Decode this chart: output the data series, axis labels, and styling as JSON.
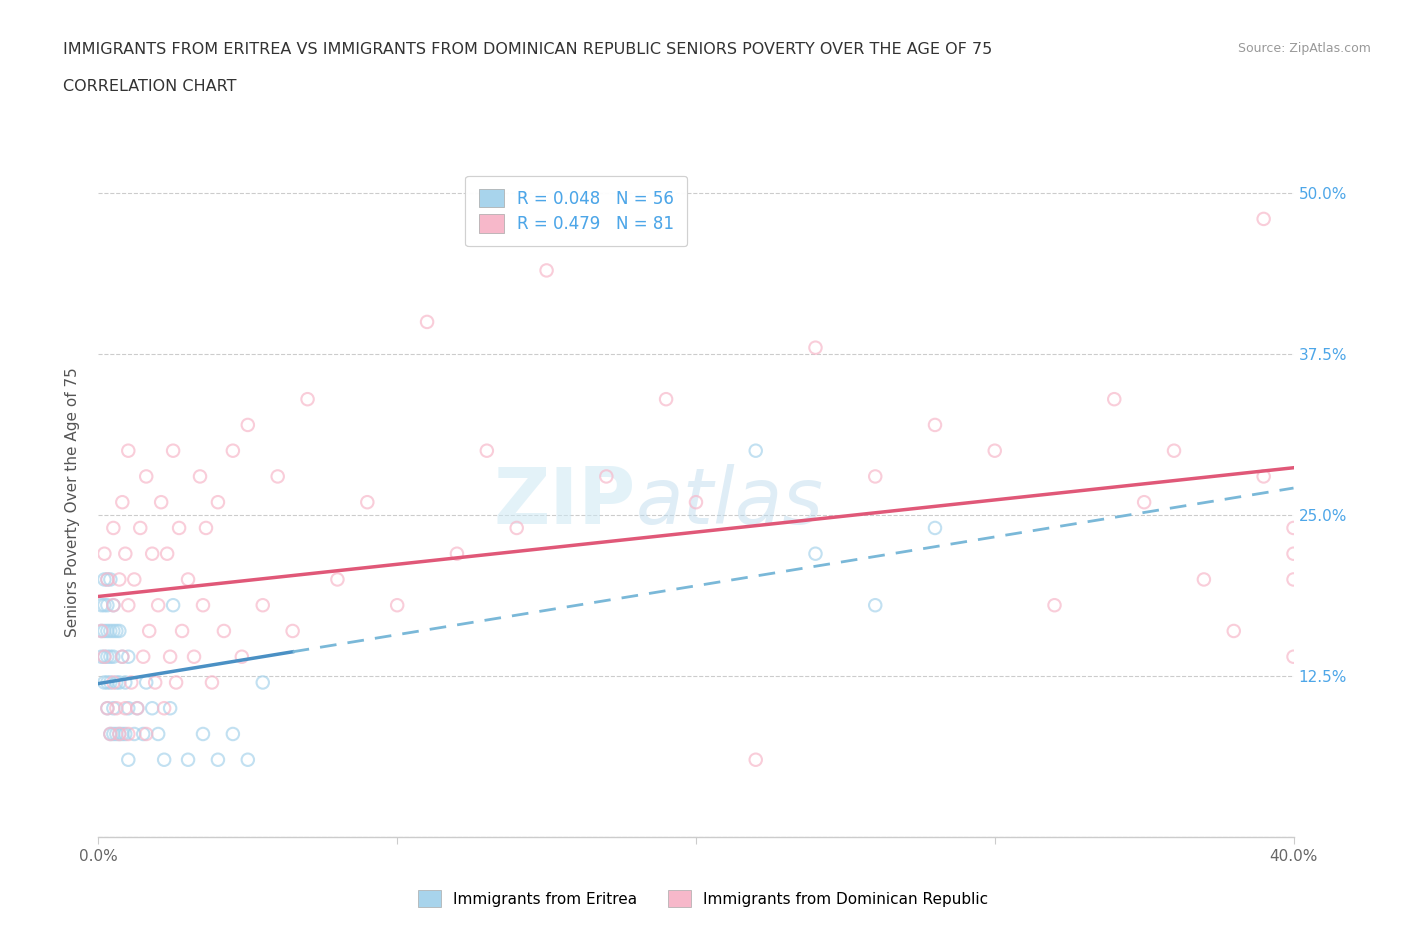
{
  "title_line1": "IMMIGRANTS FROM ERITREA VS IMMIGRANTS FROM DOMINICAN REPUBLIC SENIORS POVERTY OVER THE AGE OF 75",
  "title_line2": "CORRELATION CHART",
  "source": "Source: ZipAtlas.com",
  "watermark_zip": "ZIP",
  "watermark_atlas": "atlas",
  "xlabel": "",
  "ylabel": "Seniors Poverty Over the Age of 75",
  "xmin": 0.0,
  "xmax": 0.4,
  "ymin": 0.0,
  "ymax": 0.52,
  "yticks": [
    0.0,
    0.125,
    0.25,
    0.375,
    0.5
  ],
  "ytick_labels": [
    "",
    "12.5%",
    "25.0%",
    "37.5%",
    "50.0%"
  ],
  "xticks": [
    0.0,
    0.1,
    0.2,
    0.3,
    0.4
  ],
  "xtick_labels": [
    "0.0%",
    "",
    "",
    "",
    "40.0%"
  ],
  "legend_label1": "Immigrants from Eritrea",
  "legend_label2": "Immigrants from Dominican Republic",
  "r1": "0.048",
  "n1": "56",
  "r2": "0.479",
  "n2": "81",
  "color1": "#a8d4ec",
  "color2": "#f7b8ca",
  "trendline1_solid_color": "#4a90c4",
  "trendline1_dash_color": "#7ab8d8",
  "trendline2_color": "#e05878",
  "dot_alpha": 0.7,
  "dot_size": 80,
  "blue_scatter_x": [
    0.001,
    0.001,
    0.001,
    0.002,
    0.002,
    0.002,
    0.002,
    0.002,
    0.003,
    0.003,
    0.003,
    0.003,
    0.003,
    0.003,
    0.004,
    0.004,
    0.004,
    0.004,
    0.004,
    0.005,
    0.005,
    0.005,
    0.005,
    0.005,
    0.006,
    0.006,
    0.006,
    0.007,
    0.007,
    0.007,
    0.008,
    0.008,
    0.009,
    0.009,
    0.01,
    0.01,
    0.01,
    0.012,
    0.013,
    0.015,
    0.016,
    0.018,
    0.02,
    0.022,
    0.024,
    0.025,
    0.03,
    0.035,
    0.04,
    0.045,
    0.05,
    0.055,
    0.22,
    0.24,
    0.26,
    0.28
  ],
  "blue_scatter_y": [
    0.14,
    0.16,
    0.18,
    0.12,
    0.14,
    0.16,
    0.18,
    0.2,
    0.1,
    0.12,
    0.14,
    0.16,
    0.18,
    0.2,
    0.08,
    0.12,
    0.14,
    0.16,
    0.2,
    0.08,
    0.1,
    0.14,
    0.16,
    0.18,
    0.08,
    0.12,
    0.16,
    0.08,
    0.12,
    0.16,
    0.08,
    0.14,
    0.08,
    0.12,
    0.06,
    0.1,
    0.14,
    0.08,
    0.1,
    0.08,
    0.12,
    0.1,
    0.08,
    0.06,
    0.1,
    0.18,
    0.06,
    0.08,
    0.06,
    0.08,
    0.06,
    0.12,
    0.3,
    0.22,
    0.18,
    0.24
  ],
  "pink_scatter_x": [
    0.001,
    0.002,
    0.002,
    0.003,
    0.003,
    0.004,
    0.005,
    0.005,
    0.005,
    0.006,
    0.007,
    0.007,
    0.008,
    0.008,
    0.009,
    0.009,
    0.01,
    0.01,
    0.01,
    0.011,
    0.012,
    0.013,
    0.014,
    0.015,
    0.016,
    0.016,
    0.017,
    0.018,
    0.019,
    0.02,
    0.021,
    0.022,
    0.023,
    0.024,
    0.025,
    0.026,
    0.027,
    0.028,
    0.03,
    0.032,
    0.034,
    0.035,
    0.036,
    0.038,
    0.04,
    0.042,
    0.045,
    0.048,
    0.05,
    0.055,
    0.06,
    0.065,
    0.07,
    0.08,
    0.09,
    0.1,
    0.11,
    0.12,
    0.13,
    0.14,
    0.15,
    0.17,
    0.19,
    0.2,
    0.22,
    0.24,
    0.26,
    0.28,
    0.3,
    0.32,
    0.34,
    0.35,
    0.36,
    0.37,
    0.38,
    0.39,
    0.39,
    0.4,
    0.4,
    0.4,
    0.4
  ],
  "pink_scatter_y": [
    0.16,
    0.14,
    0.22,
    0.1,
    0.2,
    0.08,
    0.12,
    0.18,
    0.24,
    0.1,
    0.08,
    0.2,
    0.14,
    0.26,
    0.1,
    0.22,
    0.08,
    0.18,
    0.3,
    0.12,
    0.2,
    0.1,
    0.24,
    0.14,
    0.08,
    0.28,
    0.16,
    0.22,
    0.12,
    0.18,
    0.26,
    0.1,
    0.22,
    0.14,
    0.3,
    0.12,
    0.24,
    0.16,
    0.2,
    0.14,
    0.28,
    0.18,
    0.24,
    0.12,
    0.26,
    0.16,
    0.3,
    0.14,
    0.32,
    0.18,
    0.28,
    0.16,
    0.34,
    0.2,
    0.26,
    0.18,
    0.4,
    0.22,
    0.3,
    0.24,
    0.44,
    0.28,
    0.34,
    0.26,
    0.06,
    0.38,
    0.28,
    0.32,
    0.3,
    0.18,
    0.34,
    0.26,
    0.3,
    0.2,
    0.16,
    0.48,
    0.28,
    0.24,
    0.2,
    0.14,
    0.22
  ],
  "trendline1_x_solid_end": 0.065,
  "trendline1_intercept": 0.155,
  "trendline1_slope": 0.35,
  "trendline2_intercept": 0.16,
  "trendline2_slope": 0.55
}
